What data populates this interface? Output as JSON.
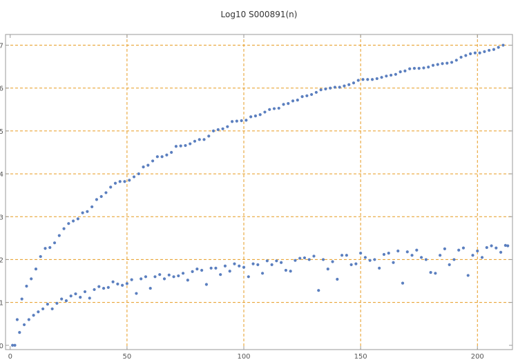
{
  "chart_data": {
    "type": "scatter",
    "title": "Log10 S000891(n)",
    "xlabel": "",
    "ylabel": "",
    "xlim": [
      -2,
      215
    ],
    "ylim": [
      -0.1,
      7.25
    ],
    "grid": true,
    "x_ticks": [
      0,
      50,
      100,
      150,
      200
    ],
    "y_ticks": [
      0,
      1,
      2,
      3,
      4,
      5,
      6,
      7
    ],
    "x_grid": [
      50,
      100,
      150,
      200
    ],
    "y_grid": [
      1,
      2,
      3,
      4,
      5,
      6,
      7
    ],
    "colors": {
      "points": "#5b7fbf",
      "grid": "#e69a1f",
      "axis": "#999999"
    },
    "series": [
      {
        "values": [
          [
            1,
            0
          ],
          [
            2,
            0
          ],
          [
            3,
            0.6
          ],
          [
            4,
            0.3
          ],
          [
            5,
            1.08
          ],
          [
            6,
            0.48
          ],
          [
            7,
            1.38
          ],
          [
            8,
            0.6
          ],
          [
            9,
            1.55
          ],
          [
            10,
            0.7
          ],
          [
            11,
            1.78
          ],
          [
            12,
            0.78
          ],
          [
            13,
            2.07
          ],
          [
            14,
            0.85
          ],
          [
            15,
            2.26
          ],
          [
            16,
            0.96
          ],
          [
            17,
            2.28
          ],
          [
            18,
            0.85
          ],
          [
            19,
            2.39
          ],
          [
            20,
            0.98
          ],
          [
            21,
            2.56
          ],
          [
            22,
            1.08
          ],
          [
            23,
            2.72
          ],
          [
            24,
            1.04
          ],
          [
            25,
            2.84
          ],
          [
            26,
            1.15
          ],
          [
            27,
            2.9
          ],
          [
            28,
            1.2
          ],
          [
            29,
            2.95
          ],
          [
            30,
            1.12
          ],
          [
            31,
            3.09
          ],
          [
            32,
            1.25
          ],
          [
            33,
            3.12
          ],
          [
            34,
            1.1
          ],
          [
            35,
            3.23
          ],
          [
            36,
            1.3
          ],
          [
            37,
            3.4
          ],
          [
            38,
            1.37
          ],
          [
            39,
            3.47
          ],
          [
            40,
            1.33
          ],
          [
            41,
            3.56
          ],
          [
            42,
            1.35
          ],
          [
            43,
            3.69
          ],
          [
            44,
            1.48
          ],
          [
            45,
            3.78
          ],
          [
            46,
            1.43
          ],
          [
            47,
            3.82
          ],
          [
            48,
            1.4
          ],
          [
            49,
            3.82
          ],
          [
            50,
            1.44
          ],
          [
            51,
            3.85
          ],
          [
            52,
            1.53
          ],
          [
            53,
            3.93
          ],
          [
            54,
            1.21
          ],
          [
            55,
            4.0
          ],
          [
            56,
            1.55
          ],
          [
            57,
            4.16
          ],
          [
            58,
            1.6
          ],
          [
            59,
            4.2
          ],
          [
            60,
            1.33
          ],
          [
            61,
            4.3
          ],
          [
            62,
            1.6
          ],
          [
            63,
            4.4
          ],
          [
            64,
            1.65
          ],
          [
            65,
            4.4
          ],
          [
            66,
            1.55
          ],
          [
            67,
            4.44
          ],
          [
            68,
            1.64
          ],
          [
            69,
            4.5
          ],
          [
            70,
            1.6
          ],
          [
            71,
            4.64
          ],
          [
            72,
            1.62
          ],
          [
            73,
            4.65
          ],
          [
            74,
            1.68
          ],
          [
            75,
            4.66
          ],
          [
            76,
            1.52
          ],
          [
            77,
            4.7
          ],
          [
            78,
            1.72
          ],
          [
            79,
            4.76
          ],
          [
            80,
            1.78
          ],
          [
            81,
            4.8
          ],
          [
            82,
            1.75
          ],
          [
            83,
            4.8
          ],
          [
            84,
            1.42
          ],
          [
            85,
            4.88
          ],
          [
            86,
            1.8
          ],
          [
            87,
            5.0
          ],
          [
            88,
            1.8
          ],
          [
            89,
            5.03
          ],
          [
            90,
            1.65
          ],
          [
            91,
            5.05
          ],
          [
            92,
            1.85
          ],
          [
            93,
            5.1
          ],
          [
            94,
            1.73
          ],
          [
            95,
            5.22
          ],
          [
            96,
            1.9
          ],
          [
            97,
            5.23
          ],
          [
            98,
            1.85
          ],
          [
            99,
            5.24
          ],
          [
            100,
            1.82
          ],
          [
            101,
            5.25
          ],
          [
            102,
            1.6
          ],
          [
            103,
            5.33
          ],
          [
            104,
            1.9
          ],
          [
            105,
            5.35
          ],
          [
            106,
            1.88
          ],
          [
            107,
            5.38
          ],
          [
            108,
            1.68
          ],
          [
            109,
            5.44
          ],
          [
            110,
            1.97
          ],
          [
            111,
            5.5
          ],
          [
            112,
            1.88
          ],
          [
            113,
            5.52
          ],
          [
            114,
            1.97
          ],
          [
            115,
            5.53
          ],
          [
            116,
            1.93
          ],
          [
            117,
            5.62
          ],
          [
            118,
            1.75
          ],
          [
            119,
            5.64
          ],
          [
            120,
            1.73
          ],
          [
            121,
            5.7
          ],
          [
            122,
            1.98
          ],
          [
            123,
            5.72
          ],
          [
            124,
            2.03
          ],
          [
            125,
            5.8
          ],
          [
            126,
            2.04
          ],
          [
            127,
            5.82
          ],
          [
            128,
            2.0
          ],
          [
            129,
            5.85
          ],
          [
            130,
            2.08
          ],
          [
            131,
            5.9
          ],
          [
            132,
            1.28
          ],
          [
            133,
            5.96
          ],
          [
            134,
            2.0
          ],
          [
            135,
            5.98
          ],
          [
            136,
            1.78
          ],
          [
            137,
            6.0
          ],
          [
            138,
            1.95
          ],
          [
            139,
            6.02
          ],
          [
            140,
            1.54
          ],
          [
            141,
            6.02
          ],
          [
            142,
            2.1
          ],
          [
            143,
            6.05
          ],
          [
            144,
            2.1
          ],
          [
            145,
            6.08
          ],
          [
            146,
            1.88
          ],
          [
            147,
            6.12
          ],
          [
            148,
            1.9
          ],
          [
            149,
            6.18
          ],
          [
            150,
            2.15
          ],
          [
            151,
            6.2
          ],
          [
            152,
            2.05
          ],
          [
            153,
            6.2
          ],
          [
            154,
            1.98
          ],
          [
            155,
            6.2
          ],
          [
            156,
            2.0
          ],
          [
            157,
            6.22
          ],
          [
            158,
            1.8
          ],
          [
            159,
            6.25
          ],
          [
            160,
            2.12
          ],
          [
            161,
            6.28
          ],
          [
            162,
            2.15
          ],
          [
            163,
            6.3
          ],
          [
            164,
            1.93
          ],
          [
            165,
            6.32
          ],
          [
            166,
            2.2
          ],
          [
            167,
            6.38
          ],
          [
            168,
            1.45
          ],
          [
            169,
            6.4
          ],
          [
            170,
            2.18
          ],
          [
            171,
            6.45
          ],
          [
            172,
            2.1
          ],
          [
            173,
            6.46
          ],
          [
            174,
            2.22
          ],
          [
            175,
            6.46
          ],
          [
            176,
            2.05
          ],
          [
            177,
            6.47
          ],
          [
            178,
            2.0
          ],
          [
            179,
            6.49
          ],
          [
            180,
            1.7
          ],
          [
            181,
            6.53
          ],
          [
            182,
            1.68
          ],
          [
            183,
            6.55
          ],
          [
            184,
            2.1
          ],
          [
            185,
            6.57
          ],
          [
            186,
            2.25
          ],
          [
            187,
            6.58
          ],
          [
            188,
            1.88
          ],
          [
            189,
            6.6
          ],
          [
            190,
            2.0
          ],
          [
            191,
            6.65
          ],
          [
            192,
            2.22
          ],
          [
            193,
            6.72
          ],
          [
            194,
            2.27
          ],
          [
            195,
            6.76
          ],
          [
            196,
            1.63
          ],
          [
            197,
            6.8
          ],
          [
            198,
            2.1
          ],
          [
            199,
            6.82
          ],
          [
            200,
            2.2
          ],
          [
            201,
            6.82
          ],
          [
            202,
            2.05
          ],
          [
            203,
            6.85
          ],
          [
            204,
            2.28
          ],
          [
            205,
            6.88
          ],
          [
            206,
            2.32
          ],
          [
            207,
            6.9
          ],
          [
            208,
            2.27
          ],
          [
            209,
            6.95
          ],
          [
            210,
            2.17
          ],
          [
            211,
            7.0
          ],
          [
            212,
            2.33
          ],
          [
            213,
            2.32
          ]
        ]
      }
    ]
  }
}
